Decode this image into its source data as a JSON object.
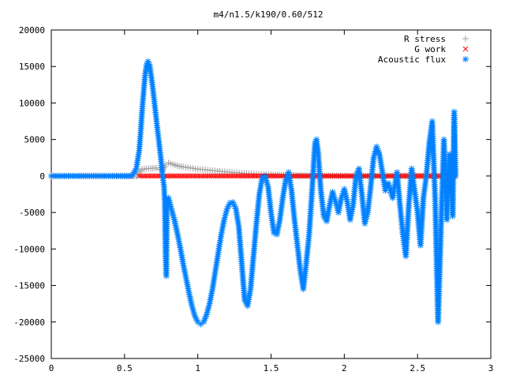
{
  "chart_data": {
    "type": "scatter",
    "title": "m4/n1.5/k190/0.60/512",
    "xlabel": "",
    "ylabel": "",
    "xlim": [
      0,
      3
    ],
    "ylim": [
      -25000,
      20000
    ],
    "x_ticks": [
      0,
      0.5,
      1,
      1.5,
      2,
      2.5,
      3
    ],
    "x_tick_labels": [
      "0",
      "0.5",
      "1",
      "1.5",
      "2",
      "2.5",
      "3"
    ],
    "y_ticks": [
      -25000,
      -20000,
      -15000,
      -10000,
      -5000,
      0,
      5000,
      10000,
      15000,
      20000
    ],
    "y_tick_labels": [
      "-25000",
      "-20000",
      "-15000",
      "-10000",
      "-5000",
      "0",
      "5000",
      "10000",
      "15000",
      "20000"
    ],
    "grid": false,
    "legend_position": "top-right",
    "series": [
      {
        "name": "R stress",
        "marker": "plus",
        "color": "#a0a0a0",
        "points": [
          [
            0.0,
            0
          ],
          [
            0.3,
            0
          ],
          [
            0.58,
            0
          ],
          [
            0.6,
            500
          ],
          [
            0.62,
            900
          ],
          [
            0.65,
            1000
          ],
          [
            0.68,
            1050
          ],
          [
            0.72,
            1100
          ],
          [
            0.74,
            900
          ],
          [
            0.76,
            700
          ],
          [
            0.78,
            1500
          ],
          [
            0.8,
            1800
          ],
          [
            0.83,
            1600
          ],
          [
            0.86,
            1400
          ],
          [
            0.9,
            1250
          ],
          [
            0.95,
            1100
          ],
          [
            1.0,
            950
          ],
          [
            1.05,
            850
          ],
          [
            1.1,
            750
          ],
          [
            1.15,
            650
          ],
          [
            1.2,
            550
          ],
          [
            1.25,
            470
          ],
          [
            1.3,
            400
          ],
          [
            1.35,
            330
          ],
          [
            1.4,
            270
          ],
          [
            1.45,
            220
          ],
          [
            1.5,
            170
          ],
          [
            1.6,
            110
          ],
          [
            1.7,
            70
          ],
          [
            1.8,
            40
          ],
          [
            2.0,
            15
          ],
          [
            2.2,
            5
          ],
          [
            2.5,
            0
          ],
          [
            2.75,
            0
          ]
        ]
      },
      {
        "name": "G work",
        "marker": "cross",
        "color": "#ff0000",
        "points": [
          [
            0.6,
            0
          ],
          [
            0.8,
            0
          ],
          [
            1.0,
            0
          ],
          [
            1.2,
            0
          ],
          [
            1.4,
            0
          ],
          [
            1.6,
            0
          ],
          [
            1.8,
            0
          ],
          [
            2.0,
            0
          ],
          [
            2.2,
            0
          ],
          [
            2.4,
            0
          ],
          [
            2.6,
            0
          ],
          [
            2.75,
            0
          ]
        ]
      },
      {
        "name": "Acoustic flux",
        "marker": "star",
        "color": "#0080ff",
        "points": [
          [
            0.0,
            0
          ],
          [
            0.3,
            0
          ],
          [
            0.55,
            0
          ],
          [
            0.58,
            1000
          ],
          [
            0.6,
            3500
          ],
          [
            0.61,
            6000
          ],
          [
            0.62,
            9000
          ],
          [
            0.63,
            11500
          ],
          [
            0.64,
            13800
          ],
          [
            0.65,
            15200
          ],
          [
            0.66,
            15700
          ],
          [
            0.67,
            15300
          ],
          [
            0.68,
            14000
          ],
          [
            0.69,
            12500
          ],
          [
            0.7,
            10800
          ],
          [
            0.71,
            9000
          ],
          [
            0.72,
            7200
          ],
          [
            0.73,
            5500
          ],
          [
            0.74,
            3800
          ],
          [
            0.75,
            2000
          ],
          [
            0.76,
            0
          ],
          [
            0.77,
            -1500
          ],
          [
            0.775,
            -4000
          ],
          [
            0.78,
            -10800
          ],
          [
            0.785,
            -13700
          ],
          [
            0.79,
            -3500
          ],
          [
            0.8,
            -3000
          ],
          [
            0.82,
            -4500
          ],
          [
            0.84,
            -6000
          ],
          [
            0.86,
            -7800
          ],
          [
            0.88,
            -9800
          ],
          [
            0.9,
            -12000
          ],
          [
            0.92,
            -14000
          ],
          [
            0.94,
            -16000
          ],
          [
            0.96,
            -17800
          ],
          [
            0.98,
            -19200
          ],
          [
            1.0,
            -20000
          ],
          [
            1.02,
            -20300
          ],
          [
            1.04,
            -20000
          ],
          [
            1.06,
            -19000
          ],
          [
            1.08,
            -17500
          ],
          [
            1.1,
            -15500
          ],
          [
            1.12,
            -13000
          ],
          [
            1.14,
            -10500
          ],
          [
            1.16,
            -8000
          ],
          [
            1.18,
            -6000
          ],
          [
            1.2,
            -4500
          ],
          [
            1.22,
            -3700
          ],
          [
            1.24,
            -3600
          ],
          [
            1.26,
            -4500
          ],
          [
            1.28,
            -7000
          ],
          [
            1.3,
            -12000
          ],
          [
            1.32,
            -17000
          ],
          [
            1.34,
            -17800
          ],
          [
            1.36,
            -15500
          ],
          [
            1.38,
            -11000
          ],
          [
            1.4,
            -6500
          ],
          [
            1.42,
            -2500
          ],
          [
            1.44,
            -200
          ],
          [
            1.46,
            0
          ],
          [
            1.48,
            -1500
          ],
          [
            1.5,
            -5000
          ],
          [
            1.52,
            -7800
          ],
          [
            1.54,
            -8000
          ],
          [
            1.56,
            -6000
          ],
          [
            1.58,
            -3000
          ],
          [
            1.6,
            -500
          ],
          [
            1.62,
            500
          ],
          [
            1.64,
            -2000
          ],
          [
            1.66,
            -6000
          ],
          [
            1.68,
            -9500
          ],
          [
            1.7,
            -13000
          ],
          [
            1.72,
            -15500
          ],
          [
            1.74,
            -12000
          ],
          [
            1.76,
            -8000
          ],
          [
            1.78,
            -2000
          ],
          [
            1.8,
            4500
          ],
          [
            1.81,
            5000
          ],
          [
            1.82,
            3500
          ],
          [
            1.84,
            -2000
          ],
          [
            1.86,
            -5500
          ],
          [
            1.88,
            -6200
          ],
          [
            1.9,
            -4000
          ],
          [
            1.92,
            -2200
          ],
          [
            1.94,
            -3500
          ],
          [
            1.96,
            -5000
          ],
          [
            1.98,
            -3000
          ],
          [
            2.0,
            -1800
          ],
          [
            2.02,
            -3500
          ],
          [
            2.04,
            -6000
          ],
          [
            2.06,
            -4000
          ],
          [
            2.08,
            0
          ],
          [
            2.1,
            1000
          ],
          [
            2.12,
            -2500
          ],
          [
            2.14,
            -6500
          ],
          [
            2.16,
            -5000
          ],
          [
            2.18,
            -1500
          ],
          [
            2.2,
            2500
          ],
          [
            2.22,
            4000
          ],
          [
            2.24,
            3000
          ],
          [
            2.26,
            500
          ],
          [
            2.28,
            -2000
          ],
          [
            2.3,
            -1000
          ],
          [
            2.33,
            -3000
          ],
          [
            2.36,
            500
          ],
          [
            2.38,
            -4000
          ],
          [
            2.4,
            -8000
          ],
          [
            2.42,
            -11000
          ],
          [
            2.44,
            -4000
          ],
          [
            2.46,
            1000
          ],
          [
            2.48,
            -2000
          ],
          [
            2.5,
            -5000
          ],
          [
            2.52,
            -9500
          ],
          [
            2.54,
            -3000
          ],
          [
            2.56,
            0
          ],
          [
            2.58,
            4500
          ],
          [
            2.6,
            7500
          ],
          [
            2.62,
            -3000
          ],
          [
            2.64,
            -20000
          ],
          [
            2.66,
            -7000
          ],
          [
            2.68,
            5000
          ],
          [
            2.7,
            -6000
          ],
          [
            2.72,
            3000
          ],
          [
            2.74,
            -5500
          ],
          [
            2.75,
            8800
          ],
          [
            2.76,
            0
          ]
        ]
      }
    ]
  }
}
